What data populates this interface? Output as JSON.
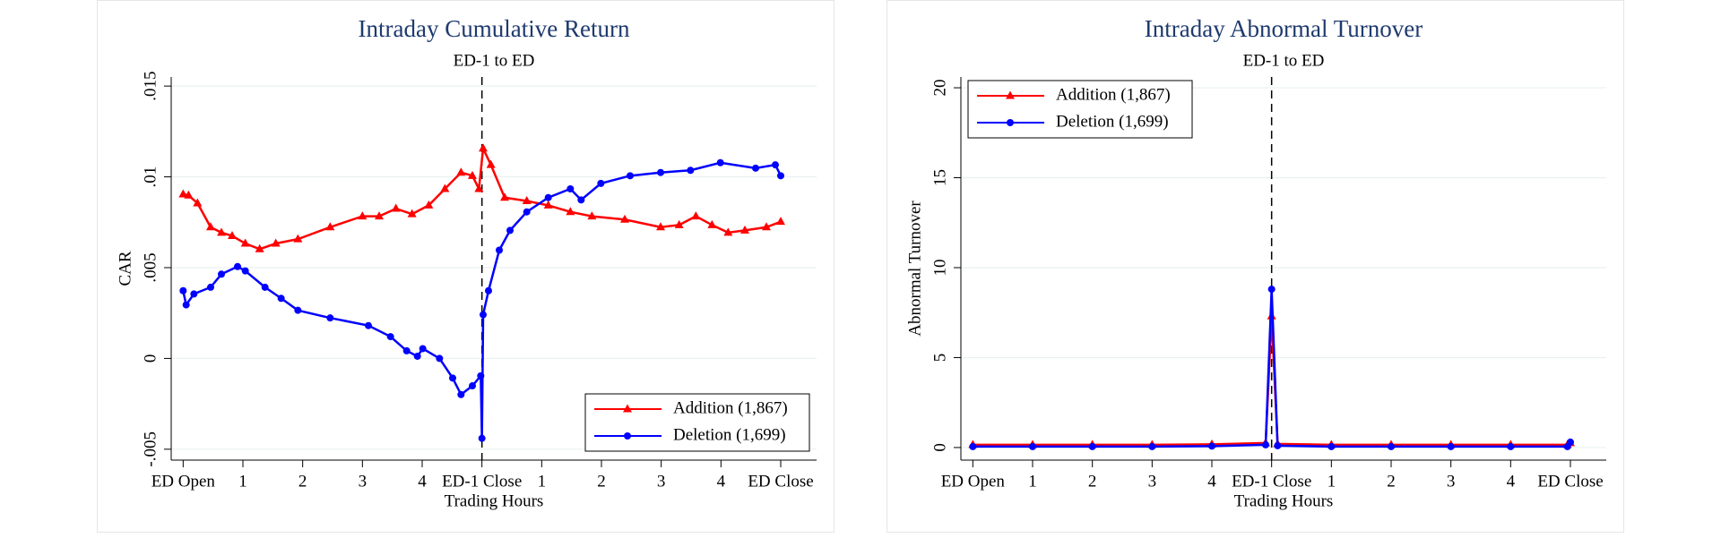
{
  "chart_data": [
    {
      "type": "line",
      "title": "Intraday Cumulative Return",
      "subtitle": "ED-1 to ED",
      "xlabel": "Trading Hours",
      "ylabel": "CAR",
      "xlim": [
        -0.2,
        10.6
      ],
      "xticks": [
        {
          "value": 0,
          "label": "ED Open"
        },
        1,
        2,
        3,
        4,
        {
          "value": 5,
          "label": "ED-1 Close"
        },
        {
          "value": 6,
          "label": "1"
        },
        {
          "value": 7,
          "label": "2"
        },
        {
          "value": 8,
          "label": "3"
        },
        {
          "value": 9,
          "label": "4"
        },
        {
          "value": 10,
          "label": "ED Close"
        }
      ],
      "ylim": [
        -0.0056,
        0.0155
      ],
      "yticks": [
        {
          "value": -0.005,
          "label": "-.005"
        },
        0,
        {
          "value": 0.005,
          "label": ".005"
        },
        {
          "value": 0.01,
          "label": ".01"
        },
        {
          "value": 0.015,
          "label": ".015"
        }
      ],
      "grid": true,
      "vline": 5,
      "legend": "lower right",
      "series": [
        {
          "name": "Addition (1,867)",
          "color": "#ff0000",
          "marker": "triangle",
          "x": [
            0,
            0.09,
            0.24,
            0.46,
            0.64,
            0.82,
            1.04,
            1.28,
            1.55,
            1.92,
            2.46,
            3.0,
            3.28,
            3.56,
            3.83,
            4.11,
            4.38,
            4.65,
            4.84,
            4.95,
            5.02,
            5.15,
            5.38,
            5.75,
            6.11,
            6.48,
            6.84,
            7.39,
            7.99,
            8.3,
            8.58,
            8.85,
            9.12,
            9.4,
            9.76,
            10
          ],
          "values": [
            0.00904,
            0.00898,
            0.00855,
            0.00723,
            0.00693,
            0.00675,
            0.00633,
            0.00602,
            0.00633,
            0.00657,
            0.00723,
            0.00783,
            0.00783,
            0.00825,
            0.00795,
            0.00843,
            0.00934,
            0.01024,
            0.01006,
            0.00934,
            0.01157,
            0.01066,
            0.00886,
            0.00867,
            0.00843,
            0.00807,
            0.00783,
            0.00765,
            0.00723,
            0.00735,
            0.00783,
            0.00735,
            0.00693,
            0.00705,
            0.00723,
            0.00753
          ]
        },
        {
          "name": "Deletion (1,699)",
          "color": "#0000ff",
          "marker": "circle",
          "x": [
            0,
            0.05,
            0.18,
            0.46,
            0.64,
            0.91,
            1.04,
            1.37,
            1.64,
            1.92,
            2.46,
            3.1,
            3.47,
            3.74,
            3.92,
            4.01,
            4.29,
            4.51,
            4.65,
            4.84,
            4.98,
            5.0,
            5.02,
            5.11,
            5.29,
            5.47,
            5.75,
            6.11,
            6.48,
            6.66,
            6.99,
            7.48,
            7.99,
            8.49,
            8.99,
            9.58,
            9.91,
            10
          ],
          "values": [
            0.00373,
            0.00295,
            0.00355,
            0.00392,
            0.00464,
            0.00506,
            0.00482,
            0.00392,
            0.00331,
            0.00265,
            0.00223,
            0.00181,
            0.0012,
            0.00042,
            0.00012,
            0.00054,
            0,
            -0.00108,
            -0.00199,
            -0.00151,
            -0.00096,
            -0.0044,
            0.00241,
            0.00373,
            0.00596,
            0.00705,
            0.00807,
            0.00886,
            0.00934,
            0.00873,
            0.00964,
            0.01006,
            0.01024,
            0.01036,
            0.01078,
            0.01048,
            0.01066,
            0.01006
          ]
        }
      ]
    },
    {
      "type": "line",
      "title": "Intraday Abnormal Turnover",
      "subtitle": "ED-1 to ED",
      "xlabel": "Trading Hours",
      "ylabel": "Abnormal Turnover",
      "xlim": [
        -0.2,
        10.6
      ],
      "xticks": [
        {
          "value": 0,
          "label": "ED Open"
        },
        1,
        2,
        3,
        4,
        {
          "value": 5,
          "label": "ED-1 Close"
        },
        {
          "value": 6,
          "label": "1"
        },
        {
          "value": 7,
          "label": "2"
        },
        {
          "value": 8,
          "label": "3"
        },
        {
          "value": 9,
          "label": "4"
        },
        {
          "value": 10,
          "label": "ED Close"
        }
      ],
      "ylim": [
        -0.7,
        20.6
      ],
      "yticks": [
        0,
        5,
        10,
        15,
        20
      ],
      "grid": true,
      "vline": 5,
      "legend": "upper left",
      "x": [
        0,
        1,
        2,
        3,
        4,
        4.9,
        5,
        5.1,
        6,
        7,
        8,
        9,
        9.95,
        10
      ],
      "series": [
        {
          "name": "Addition (1,867)",
          "color": "#ff0000",
          "marker": "triangle",
          "values": [
            0.15,
            0.15,
            0.15,
            0.15,
            0.18,
            0.25,
            7.3,
            0.2,
            0.15,
            0.15,
            0.15,
            0.15,
            0.15,
            0.25
          ]
        },
        {
          "name": "Deletion (1,699)",
          "color": "#0000ff",
          "marker": "circle",
          "values": [
            0.05,
            0.05,
            0.05,
            0.05,
            0.08,
            0.15,
            8.8,
            0.1,
            0.05,
            0.05,
            0.05,
            0.05,
            0.05,
            0.3
          ]
        }
      ]
    }
  ]
}
